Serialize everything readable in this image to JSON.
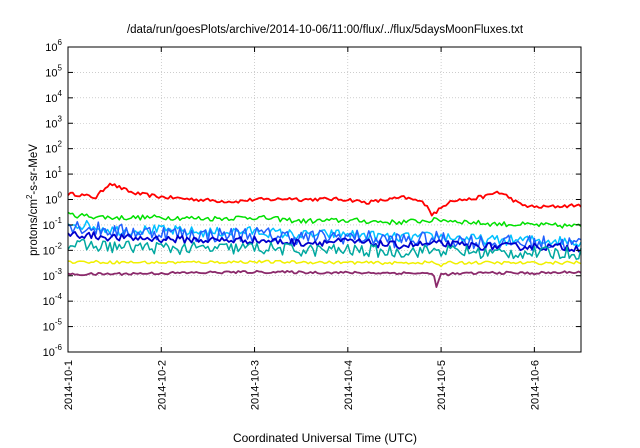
{
  "chart_data": {
    "type": "line",
    "title": "/data/run/goesPlots/archive/2014-10-06/11:00/flux/../flux/5daysMoonFluxes.txt",
    "xlabel": "Coordinated Universal Time (UTC)",
    "ylabel_parts": {
      "pre": "protons/cm",
      "sup": "2",
      "post": "-s-sr-MeV"
    },
    "yscale": "log",
    "ylim_exp": [
      -6,
      6
    ],
    "y_ticks": [
      {
        "base": "10",
        "exp": "6"
      },
      {
        "base": "10",
        "exp": "5"
      },
      {
        "base": "10",
        "exp": "4"
      },
      {
        "base": "10",
        "exp": "3"
      },
      {
        "base": "10",
        "exp": "2"
      },
      {
        "base": "10",
        "exp": "1"
      },
      {
        "base": "10",
        "exp": "0"
      },
      {
        "base": "10",
        "exp": "-1"
      },
      {
        "base": "10",
        "exp": "-2"
      },
      {
        "base": "10",
        "exp": "-3"
      },
      {
        "base": "10",
        "exp": "-4"
      },
      {
        "base": "10",
        "exp": "-5"
      },
      {
        "base": "10",
        "exp": "-6"
      }
    ],
    "x_ticks": [
      "2014-10-1",
      "2014-10-2",
      "2014-10-3",
      "2014-10-4",
      "2014-10-5",
      "2014-10-6"
    ],
    "xlim_days": [
      1,
      6.5
    ],
    "grid": true,
    "legend": "none",
    "series": [
      {
        "color": "#ff0000",
        "width": 1.8,
        "noise": 0.07,
        "points": [
          [
            1.0,
            0.22
          ],
          [
            1.1,
            0.2
          ],
          [
            1.3,
            0.08
          ],
          [
            1.45,
            0.66
          ],
          [
            1.5,
            0.55
          ],
          [
            1.7,
            0.25
          ],
          [
            2.0,
            0.1
          ],
          [
            2.3,
            0.02
          ],
          [
            2.6,
            -0.05
          ],
          [
            2.8,
            -0.08
          ],
          [
            3.0,
            0.0
          ],
          [
            3.2,
            0.0
          ],
          [
            3.4,
            0.05
          ],
          [
            3.5,
            0.0
          ],
          [
            3.8,
            0.02
          ],
          [
            4.0,
            0.0
          ],
          [
            4.2,
            -0.12
          ],
          [
            4.4,
            -0.02
          ],
          [
            4.6,
            0.08
          ],
          [
            4.75,
            -0.05
          ],
          [
            4.85,
            -0.2
          ],
          [
            4.9,
            -0.6
          ],
          [
            5.0,
            -0.35
          ],
          [
            5.1,
            -0.02
          ],
          [
            5.3,
            0.0
          ],
          [
            5.5,
            0.15
          ],
          [
            5.6,
            0.3
          ],
          [
            5.7,
            0.15
          ],
          [
            5.85,
            -0.2
          ],
          [
            6.0,
            -0.3
          ],
          [
            6.2,
            -0.28
          ],
          [
            6.5,
            -0.22
          ]
        ]
      },
      {
        "color": "#00e000",
        "width": 1.5,
        "noise": 0.1,
        "points": [
          [
            1.0,
            -0.6
          ],
          [
            1.5,
            -0.72
          ],
          [
            2.0,
            -0.7
          ],
          [
            2.5,
            -0.75
          ],
          [
            3.0,
            -0.7
          ],
          [
            3.5,
            -0.85
          ],
          [
            4.0,
            -0.82
          ],
          [
            4.5,
            -0.9
          ],
          [
            5.0,
            -0.8
          ],
          [
            5.5,
            -0.95
          ],
          [
            6.0,
            -1.0
          ],
          [
            6.5,
            -1.05
          ]
        ]
      },
      {
        "color": "#00c0ff",
        "width": 1.5,
        "noise": 0.2,
        "points": [
          [
            1.0,
            -0.9
          ],
          [
            1.5,
            -1.2
          ],
          [
            2.0,
            -1.2
          ],
          [
            2.5,
            -1.3
          ],
          [
            3.0,
            -1.25
          ],
          [
            3.5,
            -1.4
          ],
          [
            4.0,
            -1.35
          ],
          [
            4.5,
            -1.5
          ],
          [
            5.0,
            -1.45
          ],
          [
            5.5,
            -1.6
          ],
          [
            6.0,
            -1.6
          ],
          [
            6.5,
            -1.65
          ]
        ]
      },
      {
        "color": "#2060ff",
        "width": 1.5,
        "noise": 0.3,
        "points": [
          [
            1.0,
            -1.0
          ],
          [
            1.5,
            -1.25
          ],
          [
            2.0,
            -1.3
          ],
          [
            2.5,
            -1.4
          ],
          [
            3.0,
            -1.35
          ],
          [
            3.5,
            -1.5
          ],
          [
            4.0,
            -1.45
          ],
          [
            4.5,
            -1.6
          ],
          [
            5.0,
            -1.55
          ],
          [
            5.5,
            -1.7
          ],
          [
            6.0,
            -1.7
          ],
          [
            6.5,
            -1.75
          ]
        ]
      },
      {
        "color": "#0000cc",
        "width": 1.8,
        "noise": 0.15,
        "points": [
          [
            1.0,
            -1.35
          ],
          [
            1.5,
            -1.5
          ],
          [
            2.0,
            -1.55
          ],
          [
            2.5,
            -1.6
          ],
          [
            3.0,
            -1.6
          ],
          [
            3.5,
            -1.7
          ],
          [
            4.0,
            -1.65
          ],
          [
            4.5,
            -1.8
          ],
          [
            5.0,
            -1.75
          ],
          [
            5.5,
            -1.85
          ],
          [
            6.0,
            -1.85
          ],
          [
            6.5,
            -1.9
          ]
        ]
      },
      {
        "color": "#00a8a0",
        "width": 1.5,
        "noise": 0.25,
        "points": [
          [
            1.0,
            -1.8
          ],
          [
            1.5,
            -1.85
          ],
          [
            2.0,
            -1.9
          ],
          [
            2.5,
            -1.95
          ],
          [
            3.0,
            -1.9
          ],
          [
            3.5,
            -2.0
          ],
          [
            4.0,
            -2.0
          ],
          [
            4.5,
            -2.05
          ],
          [
            5.0,
            -2.0
          ],
          [
            5.5,
            -2.1
          ],
          [
            6.0,
            -2.1
          ],
          [
            6.5,
            -2.1
          ]
        ]
      },
      {
        "color": "#f0f000",
        "width": 1.5,
        "noise": 0.06,
        "points": [
          [
            1.0,
            -2.45
          ],
          [
            2.0,
            -2.48
          ],
          [
            3.0,
            -2.45
          ],
          [
            4.0,
            -2.48
          ],
          [
            4.5,
            -2.5
          ],
          [
            4.9,
            -2.47
          ],
          [
            5.0,
            -2.6
          ],
          [
            5.1,
            -2.48
          ],
          [
            6.0,
            -2.5
          ],
          [
            6.5,
            -2.48
          ]
        ]
      },
      {
        "color": "#8b2a6b",
        "width": 1.8,
        "noise": 0.05,
        "points": [
          [
            1.0,
            -2.95
          ],
          [
            2.0,
            -2.9
          ],
          [
            3.0,
            -2.85
          ],
          [
            4.0,
            -2.88
          ],
          [
            4.8,
            -2.9
          ],
          [
            4.92,
            -2.95
          ],
          [
            4.95,
            -3.4
          ],
          [
            5.0,
            -2.95
          ],
          [
            5.5,
            -2.88
          ],
          [
            6.0,
            -2.9
          ],
          [
            6.5,
            -2.85
          ]
        ]
      }
    ]
  }
}
